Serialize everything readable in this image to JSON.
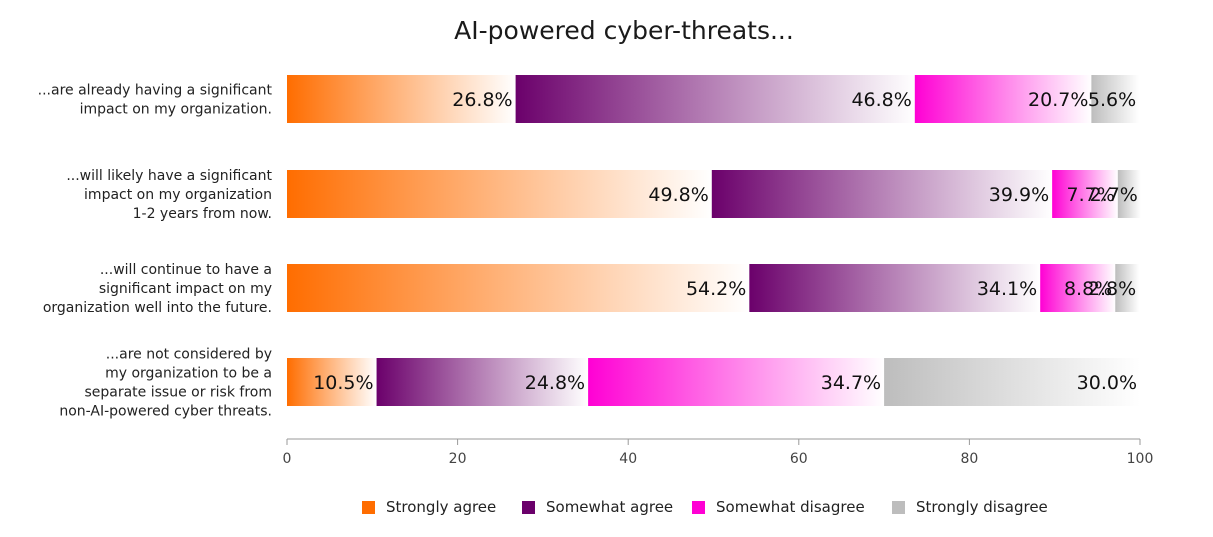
{
  "chart_data": {
    "type": "bar",
    "orientation": "horizontal",
    "stacked": true,
    "title": "AI-powered cyber-threats...",
    "xlabel": "",
    "ylabel": "",
    "xlim": [
      0,
      100
    ],
    "xticks": [
      "0",
      "20",
      "40",
      "60",
      "80",
      "100"
    ],
    "grid": false,
    "legend_position": "bottom",
    "categories": [
      [
        "...are already having a significant",
        "impact on my organization."
      ],
      [
        "...will likely have a significant",
        "impact on my organization",
        "1-2 years from now."
      ],
      [
        "...will continue to have a",
        "significant impact on my",
        "organization well into the future."
      ],
      [
        "...are not considered by",
        "my organization to be a",
        "separate issue or risk from",
        "non-AI-powered cyber threats."
      ]
    ],
    "series": [
      {
        "name": "Strongly agree",
        "color": "#FF6D00",
        "values": [
          26.8,
          49.8,
          54.2,
          10.5
        ],
        "labels": [
          "26.8%",
          "49.8%",
          "54.2%",
          "10.5%"
        ]
      },
      {
        "name": "Somewhat agree",
        "color": "#6B006B",
        "values": [
          46.8,
          39.9,
          34.1,
          24.8
        ],
        "labels": [
          "46.8%",
          "39.9%",
          "34.1%",
          "24.8%"
        ]
      },
      {
        "name": "Somewhat disagree",
        "color": "#FF00D4",
        "values": [
          20.7,
          7.7,
          8.8,
          34.7
        ],
        "labels": [
          "20.7%",
          "7.7%",
          "8.8%",
          "34.7%"
        ]
      },
      {
        "name": "Strongly disagree",
        "color": "#BDBDBD",
        "values": [
          5.6,
          2.7,
          2.8,
          30.0
        ],
        "labels": [
          "5.6%",
          "2.7%",
          "2.8%",
          "30.0%"
        ]
      }
    ]
  }
}
